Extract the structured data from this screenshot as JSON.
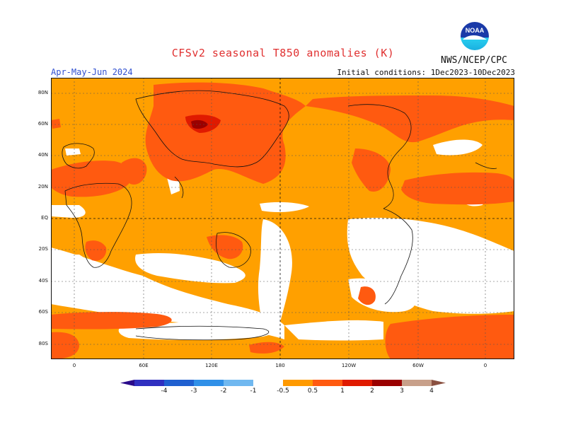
{
  "title": "CFSv2 seasonal T850 anomalies (K)",
  "organization": "NWS/NCEP/CPC",
  "logo_text": "NOAA",
  "season": "Apr-May-Jun 2024",
  "initial_conditions": "Initial conditions: 1Dec2023-10Dec2023",
  "y_ticks": [
    "80N",
    "60N",
    "40N",
    "20N",
    "EQ",
    "20S",
    "40S",
    "60S",
    "80S"
  ],
  "x_ticks": [
    "0",
    "60E",
    "120E",
    "180",
    "120W",
    "60W",
    "0"
  ],
  "colorbar": {
    "labels": [
      "-4",
      "-3",
      "-2",
      "-1",
      "-0.5",
      "0.5",
      "1",
      "2",
      "3",
      "4"
    ],
    "colors": [
      "#2a0a8a",
      "#3030c0",
      "#2060d0",
      "#3090e8",
      "#70b8f0",
      "#ffffff",
      "#ff9a00",
      "#ff5a10",
      "#e01a00",
      "#9a0000",
      "#c8a08a",
      "#8a5040"
    ]
  },
  "colors": {
    "base": "#ffa000",
    "warm": "#ff5a10",
    "warmer": "#e01a00",
    "hot": "#9a0000",
    "neutral": "#ffffff",
    "title": "#e03030",
    "season": "#3050d0"
  }
}
